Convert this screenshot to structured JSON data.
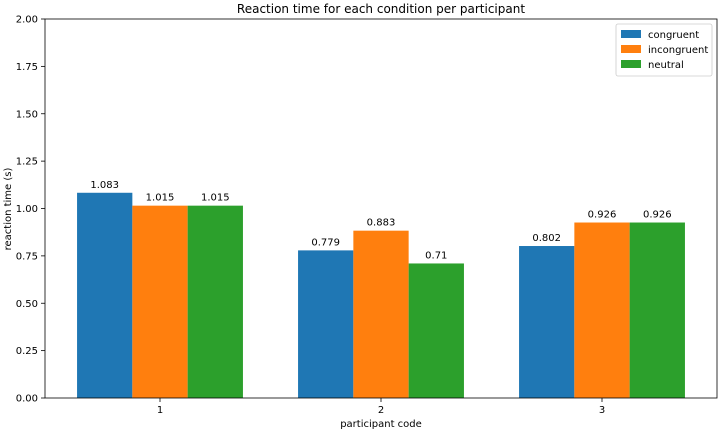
{
  "chart_data": {
    "type": "bar",
    "title": "Reaction time for each condition per participant",
    "xlabel": "participant code",
    "ylabel": "reaction time (s)",
    "categories": [
      "1",
      "2",
      "3"
    ],
    "ylim": [
      0,
      2
    ],
    "yticks": [
      "0.00",
      "0.25",
      "0.50",
      "0.75",
      "1.00",
      "1.25",
      "1.50",
      "1.75",
      "2.00"
    ],
    "legend_position": "top-right",
    "grid": false,
    "series": [
      {
        "name": "congruent",
        "color": "#1f77b4",
        "values": [
          1.083,
          0.779,
          0.802
        ],
        "labels": [
          "1.083",
          "0.779",
          "0.802"
        ]
      },
      {
        "name": "incongruent",
        "color": "#ff7f0e",
        "values": [
          1.015,
          0.883,
          0.926
        ],
        "labels": [
          "1.015",
          "0.883",
          "0.926"
        ]
      },
      {
        "name": "neutral",
        "color": "#2ca02c",
        "values": [
          1.015,
          0.71,
          0.926
        ],
        "labels": [
          "1.015",
          "0.71",
          "0.926"
        ]
      }
    ]
  }
}
